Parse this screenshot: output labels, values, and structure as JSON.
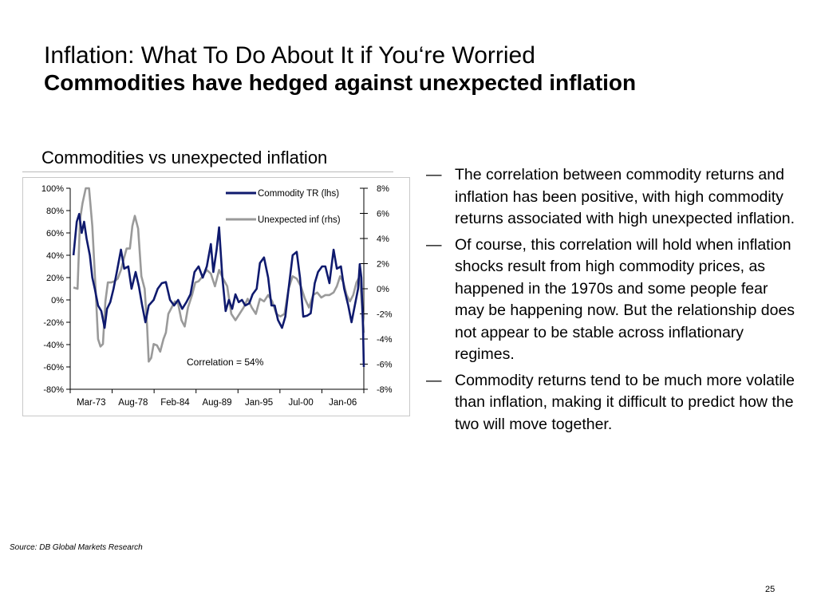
{
  "slide": {
    "title": "Inflation: What To Do About It if You‘re Worried",
    "subtitle": "Commodities have hedged against unexpected inflation",
    "chart_heading": "Commodities vs unexpected inflation",
    "bullets": [
      "The correlation between commodity returns and inflation has been positive, with high commodity returns associated with high unexpected inflation.",
      "Of course, this correlation will hold when inflation shocks result from high commodity prices, as happened in the 1970s and some people fear may be happening now. But the relationship does not appear to be stable across inflationary regimes.",
      "Commodity returns tend to be much more volatile than inflation, making it difficult to predict how the two will move together."
    ],
    "bullet_marker": "—",
    "source": "Source:  DB Global Markets Research",
    "page_number": "25"
  },
  "chart_data": {
    "type": "line",
    "title": "Commodities vs unexpected inflation",
    "annotation": "Correlation = 54%",
    "x_tick_labels": [
      "Mar-73",
      "Aug-78",
      "Feb-84",
      "Aug-89",
      "Jan-95",
      "Jul-00",
      "Jan-06"
    ],
    "x_range_years": [
      1972.6,
      2008.5
    ],
    "y_left": {
      "label": "lhs",
      "range": [
        -80,
        100
      ],
      "ticks": [
        100,
        80,
        60,
        40,
        20,
        0,
        -20,
        -40,
        -60,
        -80
      ],
      "tick_labels": [
        "100%",
        "80%",
        "60%",
        "40%",
        "20%",
        "0%",
        "-20%",
        "-40%",
        "-60%",
        "-80%"
      ]
    },
    "y_right": {
      "label": "rhs",
      "range": [
        -8,
        8
      ],
      "ticks": [
        8,
        6,
        4,
        2,
        0,
        -2,
        -4,
        -6,
        -8
      ],
      "tick_labels": [
        "8%",
        "6%",
        "4%",
        "2%",
        "0%",
        "-2%",
        "-4%",
        "-6%",
        "-8%"
      ]
    },
    "legend_position": "top-right",
    "series": [
      {
        "name": "Commodity TR (lhs)",
        "axis": "left",
        "color": "#0f1a6e",
        "points": [
          [
            1973.0,
            40
          ],
          [
            1973.4,
            70
          ],
          [
            1973.7,
            77
          ],
          [
            1974.0,
            60
          ],
          [
            1974.3,
            70
          ],
          [
            1974.6,
            55
          ],
          [
            1975.0,
            40
          ],
          [
            1975.3,
            20
          ],
          [
            1975.6,
            10
          ],
          [
            1976.0,
            -5
          ],
          [
            1976.4,
            -10
          ],
          [
            1976.8,
            -25
          ],
          [
            1977.1,
            -8
          ],
          [
            1977.5,
            -2
          ],
          [
            1977.9,
            10
          ],
          [
            1978.3,
            25
          ],
          [
            1978.8,
            45
          ],
          [
            1979.2,
            28
          ],
          [
            1979.7,
            30
          ],
          [
            1980.1,
            10
          ],
          [
            1980.6,
            25
          ],
          [
            1981.0,
            12
          ],
          [
            1981.4,
            -5
          ],
          [
            1981.8,
            -20
          ],
          [
            1982.2,
            -5
          ],
          [
            1982.8,
            0
          ],
          [
            1983.3,
            10
          ],
          [
            1983.8,
            15
          ],
          [
            1984.3,
            16
          ],
          [
            1984.8,
            0
          ],
          [
            1985.3,
            -5
          ],
          [
            1985.8,
            0
          ],
          [
            1986.3,
            -8
          ],
          [
            1986.8,
            -2
          ],
          [
            1987.3,
            5
          ],
          [
            1987.8,
            25
          ],
          [
            1988.3,
            30
          ],
          [
            1988.8,
            20
          ],
          [
            1989.3,
            30
          ],
          [
            1989.8,
            50
          ],
          [
            1990.1,
            25
          ],
          [
            1990.5,
            45
          ],
          [
            1990.8,
            65
          ],
          [
            1991.2,
            20
          ],
          [
            1991.6,
            -10
          ],
          [
            1992.0,
            0
          ],
          [
            1992.4,
            -8
          ],
          [
            1992.8,
            5
          ],
          [
            1993.2,
            -2
          ],
          [
            1993.6,
            0
          ],
          [
            1994.0,
            -5
          ],
          [
            1994.5,
            -3
          ],
          [
            1994.9,
            5
          ],
          [
            1995.4,
            10
          ],
          [
            1995.8,
            33
          ],
          [
            1996.3,
            38
          ],
          [
            1996.8,
            20
          ],
          [
            1997.2,
            -5
          ],
          [
            1997.6,
            -5
          ],
          [
            1998.0,
            -18
          ],
          [
            1998.5,
            -25
          ],
          [
            1998.9,
            -15
          ],
          [
            1999.3,
            10
          ],
          [
            1999.8,
            40
          ],
          [
            2000.3,
            43
          ],
          [
            2000.7,
            20
          ],
          [
            2001.1,
            -15
          ],
          [
            2001.6,
            -14
          ],
          [
            2002.0,
            -12
          ],
          [
            2002.5,
            15
          ],
          [
            2002.9,
            25
          ],
          [
            2003.4,
            30
          ],
          [
            2003.8,
            30
          ],
          [
            2004.3,
            15
          ],
          [
            2004.8,
            45
          ],
          [
            2005.2,
            28
          ],
          [
            2005.7,
            30
          ],
          [
            2006.1,
            10
          ],
          [
            2006.6,
            -5
          ],
          [
            2007.0,
            -20
          ],
          [
            2007.4,
            -5
          ],
          [
            2007.8,
            10
          ],
          [
            2008.0,
            32
          ],
          [
            2008.2,
            20
          ],
          [
            2008.4,
            -25
          ],
          [
            2008.5,
            -60
          ]
        ]
      },
      {
        "name": "Unexpected inf (rhs)",
        "axis": "right",
        "color": "#9a9a9a",
        "points": [
          [
            1973.0,
            0.1
          ],
          [
            1973.5,
            0
          ],
          [
            1973.8,
            5.5
          ],
          [
            1974.1,
            6.8
          ],
          [
            1974.5,
            8.0
          ],
          [
            1974.9,
            8.0
          ],
          [
            1975.3,
            5.0
          ],
          [
            1975.7,
            0
          ],
          [
            1976.0,
            -4.0
          ],
          [
            1976.3,
            -4.6
          ],
          [
            1976.6,
            -4.4
          ],
          [
            1976.9,
            -1.0
          ],
          [
            1977.2,
            0.5
          ],
          [
            1977.6,
            0.5
          ],
          [
            1978.0,
            0.6
          ],
          [
            1978.4,
            0.8
          ],
          [
            1978.8,
            1.5
          ],
          [
            1979.2,
            2.5
          ],
          [
            1979.5,
            3.2
          ],
          [
            1979.9,
            3.2
          ],
          [
            1980.2,
            5.0
          ],
          [
            1980.5,
            5.8
          ],
          [
            1980.9,
            4.8
          ],
          [
            1981.3,
            1.0
          ],
          [
            1981.7,
            0
          ],
          [
            1982.0,
            -3.0
          ],
          [
            1982.2,
            -5.8
          ],
          [
            1982.5,
            -5.5
          ],
          [
            1982.8,
            -4.4
          ],
          [
            1983.2,
            -4.5
          ],
          [
            1983.6,
            -5.0
          ],
          [
            1984.0,
            -4.0
          ],
          [
            1984.3,
            -3.5
          ],
          [
            1984.6,
            -2.0
          ],
          [
            1985.0,
            -1.5
          ],
          [
            1985.4,
            -1.0
          ],
          [
            1985.8,
            -1.2
          ],
          [
            1986.2,
            -2.5
          ],
          [
            1986.6,
            -3.0
          ],
          [
            1987.0,
            -1.5
          ],
          [
            1987.5,
            -0.5
          ],
          [
            1987.9,
            0.5
          ],
          [
            1988.3,
            0.6
          ],
          [
            1988.8,
            1.0
          ],
          [
            1989.3,
            1.5
          ],
          [
            1989.8,
            1.2
          ],
          [
            1990.3,
            0.2
          ],
          [
            1990.8,
            1.5
          ],
          [
            1991.3,
            0.8
          ],
          [
            1991.8,
            0.2
          ],
          [
            1992.3,
            -2.0
          ],
          [
            1992.8,
            -2.5
          ],
          [
            1993.3,
            -2.0
          ],
          [
            1993.8,
            -1.5
          ],
          [
            1994.3,
            -0.8
          ],
          [
            1994.8,
            -1.5
          ],
          [
            1995.3,
            -2.0
          ],
          [
            1995.8,
            -0.8
          ],
          [
            1996.3,
            -1.0
          ],
          [
            1996.8,
            -0.5
          ],
          [
            1997.3,
            -1.0
          ],
          [
            1997.8,
            -2.0
          ],
          [
            1998.3,
            -2.2
          ],
          [
            1998.8,
            -2.0
          ],
          [
            1999.3,
            0
          ],
          [
            1999.8,
            1.0
          ],
          [
            2000.3,
            0.8
          ],
          [
            2000.8,
            0.2
          ],
          [
            2001.3,
            -0.8
          ],
          [
            2001.8,
            -1.5
          ],
          [
            2002.3,
            -0.5
          ],
          [
            2002.8,
            -0.3
          ],
          [
            2003.3,
            -0.7
          ],
          [
            2003.8,
            -0.5
          ],
          [
            2004.3,
            -0.5
          ],
          [
            2004.8,
            -0.3
          ],
          [
            2005.2,
            0.2
          ],
          [
            2005.6,
            1.0
          ],
          [
            2006.0,
            0.5
          ],
          [
            2006.4,
            -0.5
          ],
          [
            2006.8,
            -1.0
          ],
          [
            2007.2,
            -0.5
          ],
          [
            2007.6,
            0.5
          ],
          [
            2008.0,
            1.0
          ],
          [
            2008.3,
            -1.5
          ],
          [
            2008.5,
            -3.5
          ]
        ]
      }
    ]
  }
}
